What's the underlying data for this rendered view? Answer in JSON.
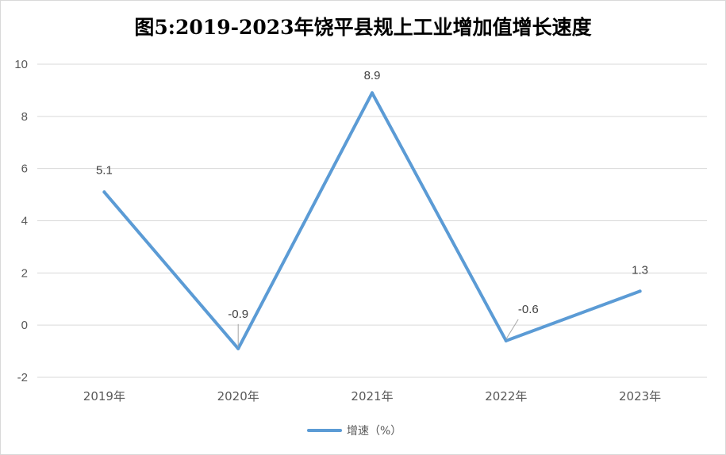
{
  "chart_data": {
    "type": "line",
    "title": "图5:2019-2023年饶平县规上工业增加值增长速度",
    "categories": [
      "2019年",
      "2020年",
      "2021年",
      "2022年",
      "2023年"
    ],
    "series": [
      {
        "name": "增速（%）",
        "values": [
          5.1,
          -0.9,
          8.9,
          -0.6,
          1.3
        ],
        "color": "#5b9bd5"
      }
    ],
    "data_labels": [
      "5.1",
      "-0.9",
      "8.9",
      "-0.6",
      "1.3"
    ],
    "y_ticks": [
      "10",
      "8",
      "6",
      "4",
      "2",
      "0",
      "-2"
    ],
    "ylim": [
      -2,
      10
    ],
    "grid": true,
    "legend": "bottom",
    "gridline_color": "#d9d9d9"
  }
}
